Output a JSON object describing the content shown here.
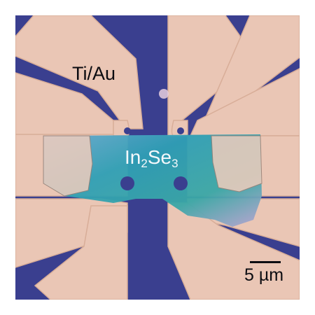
{
  "image": {
    "description": "Optical micrograph of an In2Se3 flake device with Ti/Au electrodes on a substrate",
    "colors": {
      "substrate": "#3a3f8f",
      "metal": "#eac6b5",
      "metal_edge": "#d8ad98",
      "flake": "#2f9fb5",
      "flake_light": "#5ab8c8",
      "flake_iridescent": "#b7a4d2"
    }
  },
  "labels": {
    "contact_material": "Ti/Au",
    "flake_material_base": "In",
    "flake_material_sub1": "2",
    "flake_material_mid": "Se",
    "flake_material_sub2": "3",
    "scale_bar_label": "5 µm"
  }
}
